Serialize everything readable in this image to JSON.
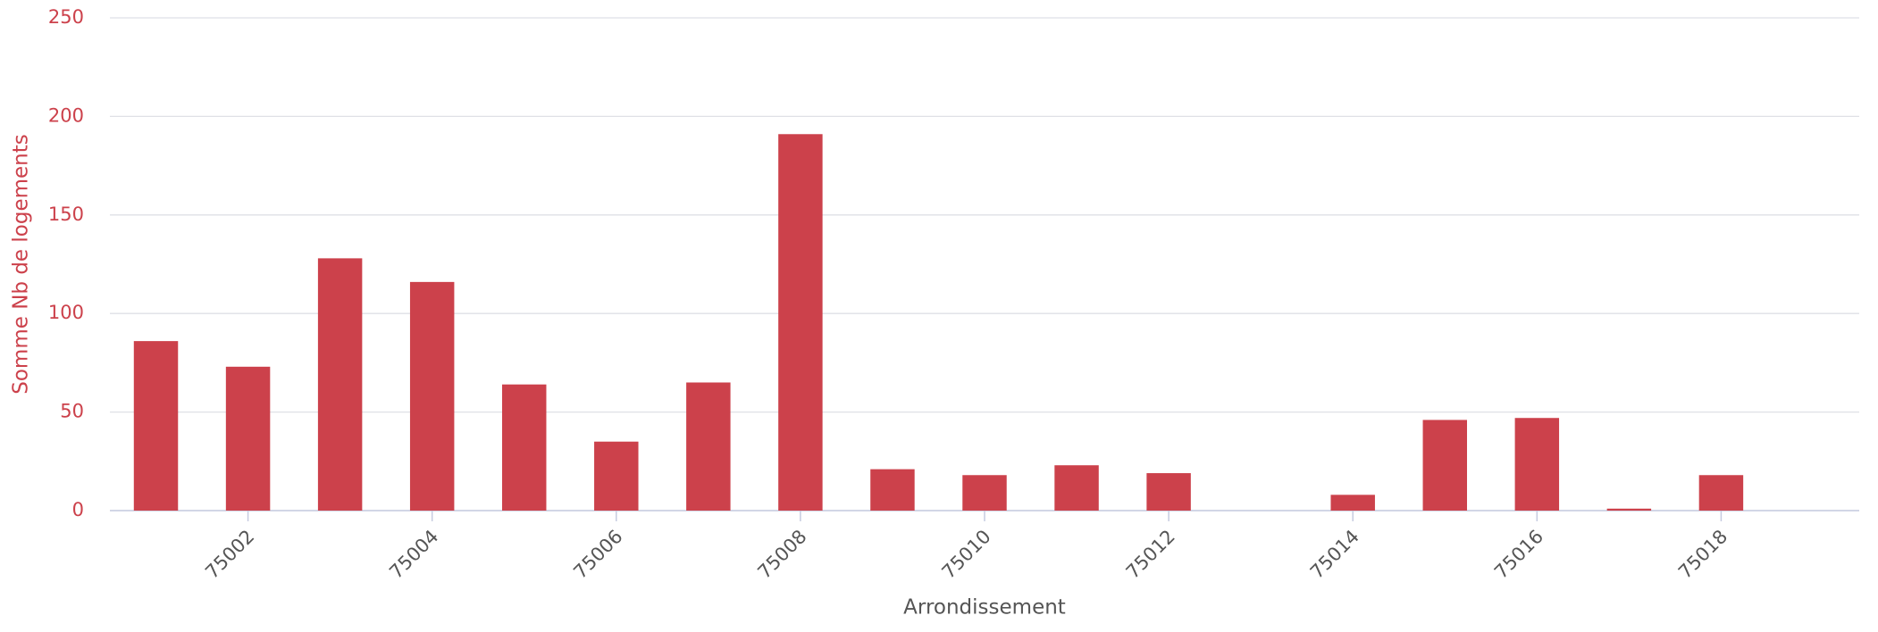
{
  "chart_data": {
    "type": "bar",
    "x_label": "Arrondissement",
    "y_label": "Somme Nb de logements",
    "categories": [
      null,
      "75002",
      null,
      "75004",
      null,
      "75006",
      null,
      "75008",
      null,
      "75010",
      null,
      "75012",
      null,
      "75014",
      null,
      "75016",
      null,
      "75018",
      null
    ],
    "values": [
      86,
      73,
      128,
      116,
      64,
      35,
      65,
      191,
      21,
      18,
      23,
      19,
      null,
      8,
      46,
      47,
      1,
      18,
      null
    ],
    "color": "#cc414b",
    "ylim": [
      0,
      250
    ],
    "yticks": [
      0,
      50,
      100,
      150,
      200,
      250
    ],
    "grid": true
  }
}
